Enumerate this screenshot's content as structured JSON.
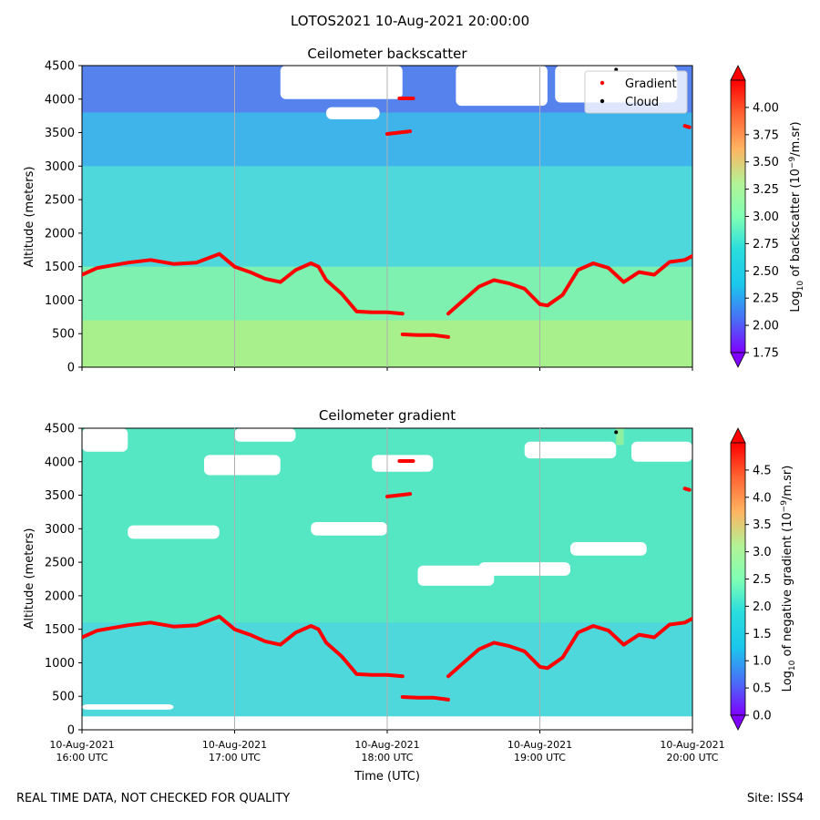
{
  "suptitle": "LOTOS2021 10-Aug-2021 20:00:00",
  "footer": {
    "left": "REAL TIME DATA, NOT CHECKED FOR QUALITY",
    "right": "Site: ISS4"
  },
  "chart_data": [
    {
      "type": "heatmap",
      "title": "Ceilometer backscatter",
      "ylabel": "Altitude (meters)",
      "xlabel": "",
      "ylim": [
        0,
        4500
      ],
      "yticks": [
        0,
        500,
        1000,
        1500,
        2000,
        2500,
        3000,
        3500,
        4000,
        4500
      ],
      "xlim": [
        "16:00",
        "20:00"
      ],
      "xticks": [
        "16:00",
        "17:00",
        "18:00",
        "19:00",
        "20:00"
      ],
      "grid": "vertical",
      "legend": {
        "placement": "top-right",
        "entries": [
          "Gradient",
          "Cloud"
        ]
      },
      "colorbar": {
        "label_pre": "Log",
        "label_sub": "10",
        "label_post": " of backscatter (10",
        "label_sup": "−9",
        "label_end": "/m.sr)",
        "range": [
          1.75,
          4.25
        ],
        "ticks": [
          "1.75",
          "2.00",
          "2.25",
          "2.50",
          "2.75",
          "3.00",
          "3.25",
          "3.50",
          "3.75",
          "4.00"
        ],
        "extend": "both",
        "colormap": "rainbow"
      },
      "layer_colors": {
        "surface": "#a8f08c",
        "boundary": "#7ef0b0",
        "mid": "#4fd8dc",
        "upper": "#3aa8f0",
        "top": "#6a5af0",
        "cloud": "#ffffff"
      },
      "marker_colors": {
        "gradient": "#ff0000",
        "cloud": "#000000"
      }
    },
    {
      "type": "heatmap",
      "title": "Ceilometer gradient",
      "ylabel": "Altitude (meters)",
      "xlabel": "Time (UTC)",
      "ylim": [
        0,
        4500
      ],
      "yticks": [
        0,
        500,
        1000,
        1500,
        2000,
        2500,
        3000,
        3500,
        4000,
        4500
      ],
      "xlim": [
        "16:00",
        "20:00"
      ],
      "xticks": [
        "16:00",
        "17:00",
        "18:00",
        "19:00",
        "20:00"
      ],
      "xtick_labels": [
        [
          "10-Aug-2021",
          "16:00 UTC"
        ],
        [
          "10-Aug-2021",
          "17:00 UTC"
        ],
        [
          "10-Aug-2021",
          "18:00 UTC"
        ],
        [
          "10-Aug-2021",
          "19:00 UTC"
        ],
        [
          "10-Aug-2021",
          "20:00 UTC"
        ]
      ],
      "grid": "vertical",
      "colorbar": {
        "label_pre": "Log",
        "label_sub": "10",
        "label_post": " of negative gradient (10",
        "label_sup": "−9",
        "label_end": "/m.sr)",
        "range": [
          0.0,
          5.0
        ],
        "ticks": [
          "0.0",
          "0.5",
          "1.0",
          "1.5",
          "2.0",
          "2.5",
          "3.0",
          "3.5",
          "4.0",
          "4.5"
        ],
        "extend": "both",
        "colormap": "rainbow"
      },
      "layer_colors": {
        "surface": "#4fd8dc",
        "mid": "#55e6c4",
        "upper": "#8cf0a0",
        "cloud": "#ffffff"
      }
    }
  ],
  "series": {
    "gradient_main": {
      "name": "Gradient",
      "x_hours": [
        16.0,
        16.1,
        16.2,
        16.3,
        16.45,
        16.6,
        16.75,
        16.9,
        17.0,
        17.1,
        17.2,
        17.3,
        17.4,
        17.5,
        17.55,
        17.6,
        17.7,
        17.8,
        17.9,
        18.0,
        18.1
      ],
      "y": [
        1380,
        1480,
        1520,
        1560,
        1600,
        1540,
        1560,
        1690,
        1500,
        1420,
        1320,
        1270,
        1450,
        1550,
        1500,
        1300,
        1100,
        830,
        820,
        820,
        800
      ]
    },
    "gradient_low": {
      "name": "Gradient",
      "x_hours": [
        18.1,
        18.2,
        18.3,
        18.4
      ],
      "y": [
        490,
        480,
        480,
        450
      ]
    },
    "gradient_after": {
      "name": "Gradient",
      "x_hours": [
        18.4,
        18.5,
        18.6,
        18.7,
        18.8,
        18.9,
        19.0,
        19.05,
        19.15,
        19.25,
        19.35,
        19.45,
        19.55,
        19.65,
        19.75,
        19.85,
        19.95,
        20.0
      ],
      "y": [
        800,
        1000,
        1200,
        1300,
        1250,
        1170,
        940,
        920,
        1080,
        1450,
        1550,
        1480,
        1270,
        1420,
        1380,
        1570,
        1600,
        1660
      ]
    },
    "gradient_high": {
      "name": "Gradient",
      "x_hours": [
        18.0,
        18.15
      ],
      "y": [
        3480,
        3520
      ]
    },
    "gradient_high2": {
      "name": "Gradient",
      "x_hours": [
        18.08,
        18.17
      ],
      "y": [
        4010,
        4010
      ]
    },
    "gradient_right": {
      "name": "Gradient",
      "x_hours": [
        19.95,
        19.98
      ],
      "y": [
        3600,
        3580
      ]
    }
  }
}
